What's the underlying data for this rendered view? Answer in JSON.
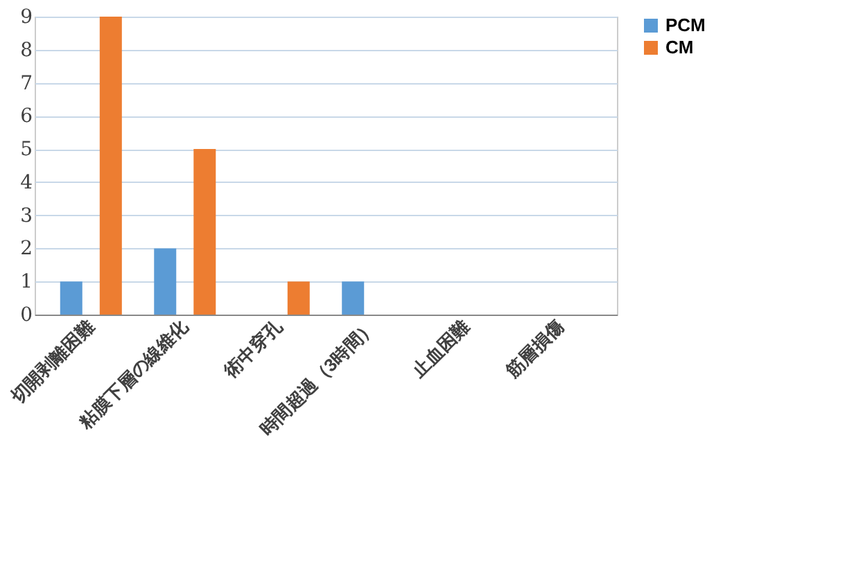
{
  "chart_data": {
    "type": "bar",
    "categories": [
      "切開剥離困難",
      "粘膜下層の線維化",
      "術中穿孔",
      "時間超過（3時間）",
      "止血困難",
      "筋層損傷"
    ],
    "series": [
      {
        "name": "PCM",
        "color": "#5b9bd5",
        "values": [
          1,
          2,
          0,
          1,
          0,
          0
        ]
      },
      {
        "name": "CM",
        "color": "#ed7d31",
        "values": [
          9,
          5,
          1,
          0,
          0,
          0
        ]
      }
    ],
    "ylim": [
      0,
      9
    ],
    "yticks": [
      0,
      1,
      2,
      3,
      4,
      5,
      6,
      7,
      8,
      9
    ],
    "grid": "y",
    "legend": "right"
  }
}
